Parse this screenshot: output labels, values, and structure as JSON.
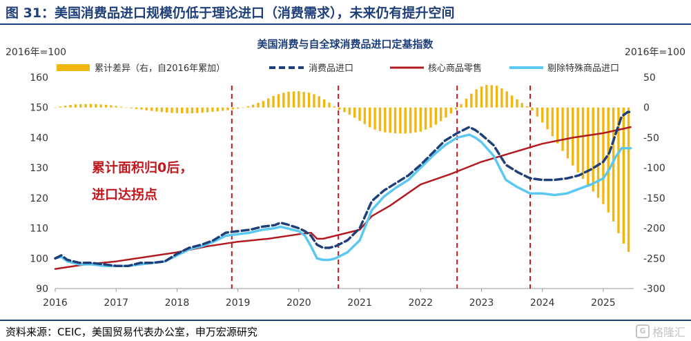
{
  "figure_title": "图 31：美国消费品进口规模仍低于理论进口（消费需求），未来仍有提升空间",
  "source_note": "资料来源：CEIC，美国贸易代表办公室，申万宏源研究",
  "watermark": {
    "icon": "logo-icon",
    "text": "格隆汇",
    "color": "#c4c4c4"
  },
  "colors": {
    "title": "#1f3f79",
    "bars": "#f2b70f",
    "consumer": "#1f3f79",
    "retail": "#b11a1f",
    "adjusted": "#5ac8f0",
    "vline": "#c0181e",
    "annotation": "#c0181e"
  },
  "chart_data": {
    "type": "line",
    "title": "美国消费与自全球消费品进口定基指数",
    "left_unit": "2016年=100",
    "right_unit": "2016年=100",
    "ylim_left": [
      90,
      160
    ],
    "ylim_right": [
      -300,
      50
    ],
    "yticks_left": [
      "90",
      "100",
      "110",
      "120",
      "130",
      "140",
      "150",
      "160"
    ],
    "yticks_right": [
      "-300",
      "-250",
      "-200",
      "-150",
      "-100",
      "-50",
      "0",
      "50"
    ],
    "xlim": [
      2016,
      2025.5
    ],
    "xticks": [
      "2016",
      "2017",
      "2018",
      "2019",
      "2020",
      "2021",
      "2022",
      "2023",
      "2024",
      "2025"
    ],
    "legend": [
      "累计差异（右，自2016年累加）",
      "消费品进口",
      "核心商品零售",
      "剔除特殊商品进口"
    ],
    "annotation": [
      "累计面积归0后，",
      "进口达拐点"
    ],
    "vlines": [
      2018.9,
      2020.65,
      2022.6,
      2023.8
    ],
    "series": [
      {
        "name": "消费品进口",
        "axis": "left",
        "style": "dashed",
        "points": [
          [
            2016.0,
            100
          ],
          [
            2016.1,
            101
          ],
          [
            2016.2,
            99.5
          ],
          [
            2016.4,
            98.5
          ],
          [
            2016.6,
            98.5
          ],
          [
            2016.8,
            98
          ],
          [
            2017.0,
            97.5
          ],
          [
            2017.2,
            97.5
          ],
          [
            2017.4,
            98.5
          ],
          [
            2017.6,
            98.5
          ],
          [
            2017.8,
            99
          ],
          [
            2018.0,
            101.5
          ],
          [
            2018.2,
            103.5
          ],
          [
            2018.4,
            104.5
          ],
          [
            2018.6,
            106
          ],
          [
            2018.8,
            108.5
          ],
          [
            2019.0,
            109
          ],
          [
            2019.2,
            109.5
          ],
          [
            2019.4,
            110.5
          ],
          [
            2019.6,
            111
          ],
          [
            2019.7,
            111.8
          ],
          [
            2019.8,
            111.3
          ],
          [
            2020.0,
            110
          ],
          [
            2020.1,
            109
          ],
          [
            2020.2,
            107.5
          ],
          [
            2020.3,
            104.5
          ],
          [
            2020.4,
            103.5
          ],
          [
            2020.5,
            103.5
          ],
          [
            2020.6,
            104
          ],
          [
            2020.8,
            106
          ],
          [
            2021.0,
            110
          ],
          [
            2021.2,
            119
          ],
          [
            2021.4,
            122.5
          ],
          [
            2021.6,
            125
          ],
          [
            2021.8,
            127.5
          ],
          [
            2022.0,
            131
          ],
          [
            2022.2,
            135
          ],
          [
            2022.4,
            139
          ],
          [
            2022.6,
            141.5
          ],
          [
            2022.8,
            143.5
          ],
          [
            2022.9,
            142.5
          ],
          [
            2023.0,
            141
          ],
          [
            2023.2,
            137.5
          ],
          [
            2023.4,
            131
          ],
          [
            2023.6,
            128.5
          ],
          [
            2023.8,
            126.5
          ],
          [
            2024.0,
            126
          ],
          [
            2024.2,
            126
          ],
          [
            2024.4,
            126.5
          ],
          [
            2024.6,
            127.5
          ],
          [
            2024.8,
            129.5
          ],
          [
            2025.0,
            132
          ],
          [
            2025.1,
            135
          ],
          [
            2025.2,
            141
          ],
          [
            2025.3,
            147
          ],
          [
            2025.4,
            148.5
          ],
          [
            2025.45,
            148.5
          ]
        ]
      },
      {
        "name": "核心商品零售",
        "axis": "left",
        "style": "solid",
        "points": [
          [
            2016.0,
            96.5
          ],
          [
            2016.5,
            98
          ],
          [
            2017.0,
            99
          ],
          [
            2017.5,
            100.5
          ],
          [
            2018.0,
            102
          ],
          [
            2018.5,
            104
          ],
          [
            2019.0,
            105.5
          ],
          [
            2019.5,
            106.5
          ],
          [
            2020.0,
            108
          ],
          [
            2020.2,
            108.5
          ],
          [
            2020.3,
            106.5
          ],
          [
            2020.4,
            106.5
          ],
          [
            2020.6,
            107.5
          ],
          [
            2021.0,
            109.5
          ],
          [
            2021.2,
            114
          ],
          [
            2021.5,
            117.5
          ],
          [
            2022.0,
            124.5
          ],
          [
            2022.5,
            128
          ],
          [
            2023.0,
            132
          ],
          [
            2023.5,
            135
          ],
          [
            2024.0,
            138
          ],
          [
            2024.5,
            140
          ],
          [
            2025.0,
            141.5
          ],
          [
            2025.45,
            143.5
          ]
        ]
      },
      {
        "name": "剔除特殊商品进口",
        "axis": "left",
        "style": "solid",
        "points": [
          [
            2016.0,
            100
          ],
          [
            2016.1,
            100.5
          ],
          [
            2016.2,
            99
          ],
          [
            2016.4,
            98
          ],
          [
            2016.6,
            98
          ],
          [
            2016.8,
            97.5
          ],
          [
            2017.0,
            97.5
          ],
          [
            2017.2,
            97.5
          ],
          [
            2017.4,
            98
          ],
          [
            2017.6,
            98.5
          ],
          [
            2017.8,
            99
          ],
          [
            2018.0,
            101
          ],
          [
            2018.2,
            103
          ],
          [
            2018.4,
            104
          ],
          [
            2018.6,
            105.5
          ],
          [
            2018.8,
            107.5
          ],
          [
            2019.0,
            108
          ],
          [
            2019.2,
            108.5
          ],
          [
            2019.4,
            109.5
          ],
          [
            2019.6,
            110
          ],
          [
            2019.7,
            110.5
          ],
          [
            2019.8,
            110
          ],
          [
            2020.0,
            109
          ],
          [
            2020.1,
            107.5
          ],
          [
            2020.2,
            104
          ],
          [
            2020.3,
            100
          ],
          [
            2020.4,
            99.5
          ],
          [
            2020.5,
            99.5
          ],
          [
            2020.6,
            100
          ],
          [
            2020.8,
            102
          ],
          [
            2021.0,
            106
          ],
          [
            2021.2,
            116
          ],
          [
            2021.4,
            120.5
          ],
          [
            2021.6,
            123.5
          ],
          [
            2021.8,
            126
          ],
          [
            2022.0,
            130
          ],
          [
            2022.2,
            134
          ],
          [
            2022.4,
            137.5
          ],
          [
            2022.6,
            140
          ],
          [
            2022.8,
            141
          ],
          [
            2022.9,
            140
          ],
          [
            2023.0,
            138.5
          ],
          [
            2023.2,
            134
          ],
          [
            2023.4,
            126
          ],
          [
            2023.6,
            123.5
          ],
          [
            2023.8,
            121.5
          ],
          [
            2024.0,
            121.5
          ],
          [
            2024.2,
            121
          ],
          [
            2024.4,
            121.5
          ],
          [
            2024.6,
            123
          ],
          [
            2024.8,
            124.5
          ],
          [
            2025.0,
            126.5
          ],
          [
            2025.1,
            129.5
          ],
          [
            2025.2,
            133.5
          ],
          [
            2025.3,
            136.5
          ],
          [
            2025.45,
            136.5
          ]
        ]
      },
      {
        "name": "累计差异（右，自2016年累加）",
        "axis": "right",
        "style": "bar",
        "points": [
          [
            2016.0,
            0
          ],
          [
            2016.1,
            2
          ],
          [
            2016.3,
            5
          ],
          [
            2016.6,
            6
          ],
          [
            2016.9,
            4
          ],
          [
            2017.1,
            1
          ],
          [
            2017.3,
            -2
          ],
          [
            2017.6,
            -6
          ],
          [
            2017.9,
            -9
          ],
          [
            2018.2,
            -10
          ],
          [
            2018.5,
            -8
          ],
          [
            2018.8,
            -5
          ],
          [
            2019.0,
            -2
          ],
          [
            2019.2,
            3
          ],
          [
            2019.4,
            10
          ],
          [
            2019.6,
            20
          ],
          [
            2019.8,
            26
          ],
          [
            2020.0,
            27
          ],
          [
            2020.2,
            24
          ],
          [
            2020.35,
            18
          ],
          [
            2020.5,
            8
          ],
          [
            2020.65,
            -3
          ],
          [
            2020.8,
            -10
          ],
          [
            2021.0,
            -22
          ],
          [
            2021.2,
            -35
          ],
          [
            2021.4,
            -41
          ],
          [
            2021.6,
            -43
          ],
          [
            2021.8,
            -43
          ],
          [
            2022.0,
            -40
          ],
          [
            2022.2,
            -32
          ],
          [
            2022.4,
            -18
          ],
          [
            2022.6,
            -2
          ],
          [
            2022.8,
            20
          ],
          [
            2022.95,
            33
          ],
          [
            2023.1,
            38
          ],
          [
            2023.25,
            36
          ],
          [
            2023.4,
            28
          ],
          [
            2023.55,
            16
          ],
          [
            2023.7,
            5
          ],
          [
            2023.8,
            -1
          ],
          [
            2024.0,
            -25
          ],
          [
            2024.2,
            -52
          ],
          [
            2024.4,
            -82
          ],
          [
            2024.6,
            -110
          ],
          [
            2024.8,
            -135
          ],
          [
            2025.0,
            -160
          ],
          [
            2025.15,
            -185
          ],
          [
            2025.3,
            -220
          ],
          [
            2025.45,
            -245
          ]
        ]
      }
    ]
  }
}
